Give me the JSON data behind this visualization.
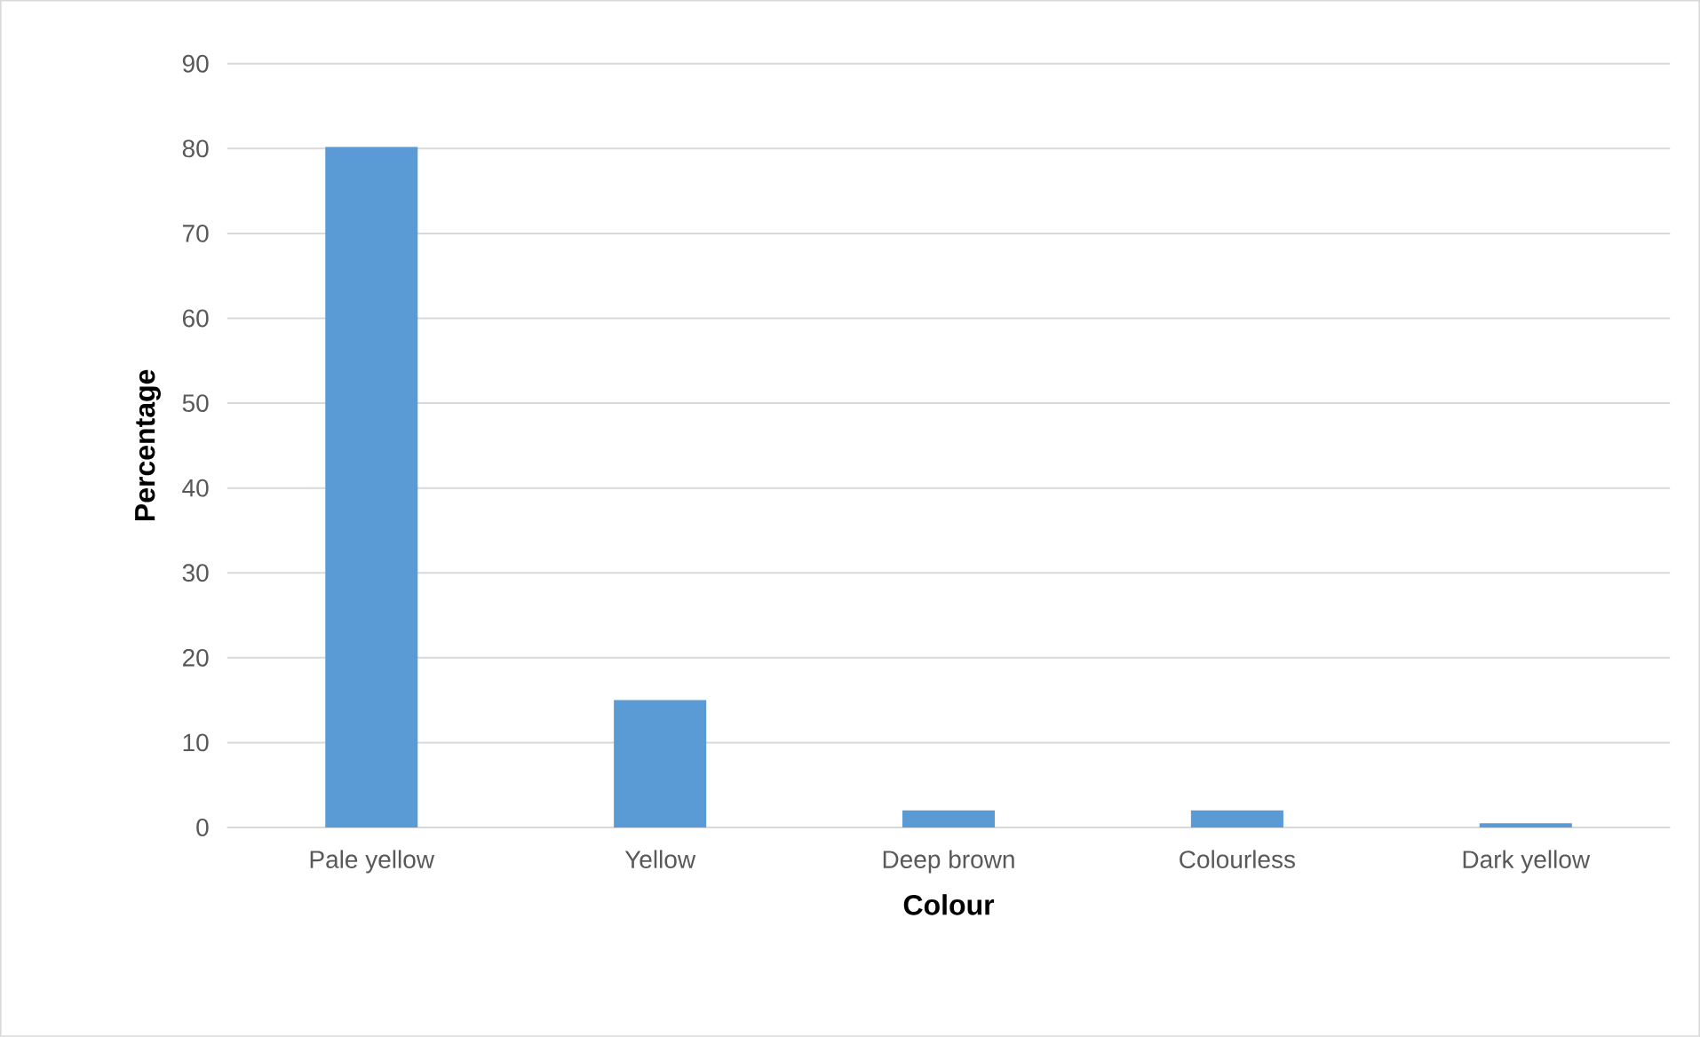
{
  "chart_data": {
    "type": "bar",
    "xlabel": "Colour",
    "ylabel": "Percentage",
    "categories": [
      "Pale yellow",
      "Yellow",
      "Deep brown",
      "Colourless",
      "Dark yellow"
    ],
    "values": [
      80.2,
      15.0,
      2.0,
      2.0,
      0.5
    ],
    "color": "#5b9bd5",
    "ylim": [
      0,
      90
    ],
    "yticks": [
      0,
      10,
      20,
      30,
      40,
      50,
      60,
      70,
      80,
      90
    ],
    "grid": "y"
  }
}
